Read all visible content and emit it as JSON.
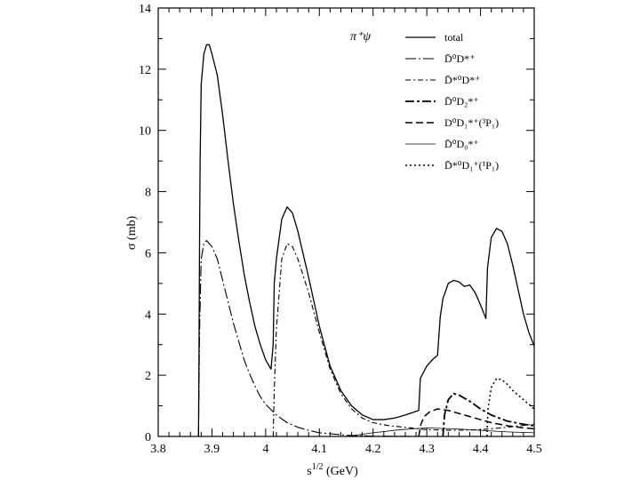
{
  "chart_data": {
    "type": "line",
    "title": "",
    "xlabel": "s^1/2 (GeV)",
    "ylabel": "σ (mb)",
    "xlim": [
      3.8,
      4.5
    ],
    "ylim": [
      0,
      14
    ],
    "grid": false,
    "legend_position": "top-right",
    "legend_title": "π⁺ψ",
    "x_ticks": [
      "3.8",
      "3.9",
      "4",
      "4.1",
      "4.2",
      "4.3",
      "4.4",
      "4.5"
    ],
    "y_ticks": [
      "0",
      "2",
      "4",
      "6",
      "8",
      "10",
      "12",
      "14"
    ],
    "series": [
      {
        "name": "total",
        "dash": "solid",
        "width": 1.3,
        "points": [
          [
            3.875,
            0
          ],
          [
            3.876,
            3.0
          ],
          [
            3.877,
            6.5
          ],
          [
            3.878,
            9.0
          ],
          [
            3.88,
            11.5
          ],
          [
            3.885,
            12.5
          ],
          [
            3.89,
            12.8
          ],
          [
            3.895,
            12.8
          ],
          [
            3.9,
            12.5
          ],
          [
            3.91,
            11.8
          ],
          [
            3.92,
            10.5
          ],
          [
            3.93,
            9.0
          ],
          [
            3.94,
            7.6
          ],
          [
            3.95,
            6.4
          ],
          [
            3.96,
            5.3
          ],
          [
            3.97,
            4.4
          ],
          [
            3.98,
            3.6
          ],
          [
            3.99,
            3.0
          ],
          [
            4.0,
            2.5
          ],
          [
            4.01,
            2.2
          ],
          [
            4.014,
            3.0
          ],
          [
            4.016,
            5.0
          ],
          [
            4.02,
            5.8
          ],
          [
            4.03,
            7.1
          ],
          [
            4.04,
            7.5
          ],
          [
            4.05,
            7.3
          ],
          [
            4.06,
            6.7
          ],
          [
            4.08,
            5.2
          ],
          [
            4.1,
            3.6
          ],
          [
            4.12,
            2.3
          ],
          [
            4.14,
            1.5
          ],
          [
            4.16,
            1.0
          ],
          [
            4.18,
            0.7
          ],
          [
            4.2,
            0.55
          ],
          [
            4.22,
            0.55
          ],
          [
            4.24,
            0.6
          ],
          [
            4.26,
            0.7
          ],
          [
            4.285,
            0.85
          ],
          [
            4.288,
            1.9
          ],
          [
            4.3,
            2.3
          ],
          [
            4.31,
            2.5
          ],
          [
            4.32,
            2.65
          ],
          [
            4.325,
            3.9
          ],
          [
            4.33,
            4.5
          ],
          [
            4.34,
            5.0
          ],
          [
            4.35,
            5.1
          ],
          [
            4.36,
            5.05
          ],
          [
            4.37,
            4.9
          ],
          [
            4.38,
            4.95
          ],
          [
            4.39,
            4.7
          ],
          [
            4.4,
            4.3
          ],
          [
            4.41,
            3.85
          ],
          [
            4.413,
            5.5
          ],
          [
            4.42,
            6.5
          ],
          [
            4.43,
            6.8
          ],
          [
            4.44,
            6.7
          ],
          [
            4.45,
            6.3
          ],
          [
            4.46,
            5.6
          ],
          [
            4.47,
            4.8
          ],
          [
            4.48,
            4.0
          ],
          [
            4.49,
            3.4
          ],
          [
            4.5,
            2.95
          ]
        ]
      },
      {
        "name": "D̄⁰D*⁺",
        "dash": "12,3,2,3",
        "width": 1.1,
        "points": [
          [
            3.875,
            0
          ],
          [
            3.877,
            3.5
          ],
          [
            3.88,
            5.8
          ],
          [
            3.885,
            6.3
          ],
          [
            3.89,
            6.4
          ],
          [
            3.9,
            6.2
          ],
          [
            3.91,
            5.8
          ],
          [
            3.92,
            5.1
          ],
          [
            3.93,
            4.4
          ],
          [
            3.94,
            3.7
          ],
          [
            3.95,
            3.1
          ],
          [
            3.96,
            2.5
          ],
          [
            3.97,
            2.05
          ],
          [
            3.98,
            1.65
          ],
          [
            3.99,
            1.3
          ],
          [
            4.0,
            1.05
          ],
          [
            4.02,
            0.7
          ],
          [
            4.04,
            0.45
          ],
          [
            4.06,
            0.3
          ],
          [
            4.08,
            0.2
          ],
          [
            4.1,
            0.12
          ],
          [
            4.15,
            0.04
          ],
          [
            4.2,
            0.01
          ],
          [
            4.3,
            0.0
          ],
          [
            4.5,
            0.0
          ]
        ]
      },
      {
        "name": "D̄*⁰D*⁺",
        "dash": "6,3,2,3",
        "width": 1.1,
        "points": [
          [
            4.014,
            0
          ],
          [
            4.016,
            1.5
          ],
          [
            4.02,
            3.5
          ],
          [
            4.03,
            5.8
          ],
          [
            4.04,
            6.3
          ],
          [
            4.05,
            6.2
          ],
          [
            4.06,
            5.8
          ],
          [
            4.08,
            4.7
          ],
          [
            4.1,
            3.4
          ],
          [
            4.12,
            2.2
          ],
          [
            4.14,
            1.4
          ],
          [
            4.16,
            0.9
          ],
          [
            4.18,
            0.6
          ],
          [
            4.2,
            0.45
          ],
          [
            4.23,
            0.35
          ],
          [
            4.26,
            0.3
          ],
          [
            4.3,
            0.22
          ],
          [
            4.35,
            0.2
          ],
          [
            4.4,
            0.22
          ],
          [
            4.45,
            0.3
          ],
          [
            4.5,
            0.4
          ]
        ]
      },
      {
        "name": "D̄⁰D₂*⁺",
        "dash": "10,3,3,3",
        "width": 1.8,
        "points": [
          [
            4.33,
            0
          ],
          [
            4.333,
            0.7
          ],
          [
            4.34,
            1.2
          ],
          [
            4.35,
            1.4
          ],
          [
            4.36,
            1.35
          ],
          [
            4.38,
            1.15
          ],
          [
            4.4,
            0.9
          ],
          [
            4.42,
            0.7
          ],
          [
            4.45,
            0.5
          ],
          [
            4.48,
            0.4
          ],
          [
            4.5,
            0.35
          ]
        ]
      },
      {
        "name": "D⁰D₁*⁺(³P₁)",
        "dash": "8,4",
        "width": 1.5,
        "points": [
          [
            4.285,
            0
          ],
          [
            4.289,
            0.4
          ],
          [
            4.295,
            0.65
          ],
          [
            4.305,
            0.8
          ],
          [
            4.32,
            0.9
          ],
          [
            4.34,
            0.85
          ],
          [
            4.36,
            0.75
          ],
          [
            4.38,
            0.65
          ],
          [
            4.4,
            0.55
          ],
          [
            4.42,
            0.45
          ],
          [
            4.45,
            0.35
          ],
          [
            4.48,
            0.28
          ],
          [
            4.5,
            0.25
          ]
        ]
      },
      {
        "name": "D̄⁰D₀*⁺",
        "dash": "solid",
        "width": 0.8,
        "points": [
          [
            4.15,
            0
          ],
          [
            4.2,
            0.12
          ],
          [
            4.25,
            0.22
          ],
          [
            4.3,
            0.28
          ],
          [
            4.35,
            0.25
          ],
          [
            4.4,
            0.2
          ],
          [
            4.45,
            0.15
          ],
          [
            4.5,
            0.12
          ]
        ]
      },
      {
        "name": "D̄*⁰D₁⁺(¹P₁)",
        "dash": "2,3",
        "width": 1.5,
        "points": [
          [
            4.412,
            0
          ],
          [
            4.414,
            0.9
          ],
          [
            4.42,
            1.6
          ],
          [
            4.43,
            1.9
          ],
          [
            4.44,
            1.85
          ],
          [
            4.45,
            1.7
          ],
          [
            4.46,
            1.5
          ],
          [
            4.48,
            1.2
          ],
          [
            4.5,
            0.9
          ]
        ]
      }
    ]
  }
}
